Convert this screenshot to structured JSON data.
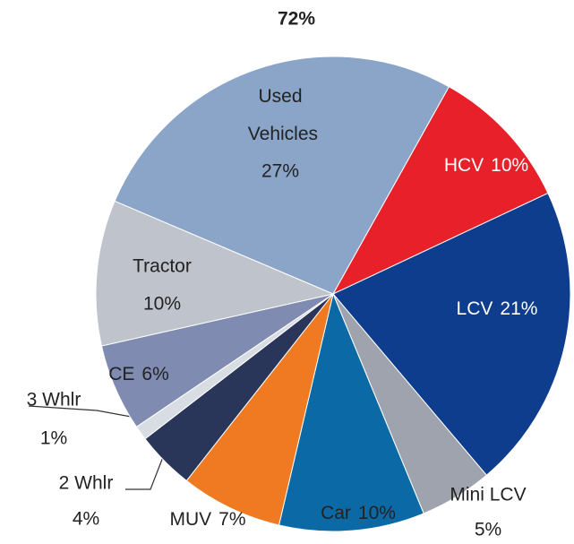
{
  "chart_data": {
    "type": "pie",
    "annotation": "72%",
    "categories": [
      "Used Vehicles",
      "HCV",
      "LCV",
      "Mini LCV",
      "Car",
      "MUV",
      "2 Whlr",
      "3 Whlr",
      "CE",
      "Tractor"
    ],
    "values": [
      27,
      10,
      21,
      5,
      10,
      7,
      4,
      1,
      6,
      10
    ],
    "value_labels": [
      "27%",
      "10%",
      "21%",
      "5%",
      "10%",
      "7%",
      "4%",
      "1%",
      "6%",
      "10%"
    ],
    "colors": [
      "#8aa5c8",
      "#e8202a",
      "#0d3d8c",
      "#9ea3ae",
      "#0b6aa6",
      "#f07a21",
      "#293659",
      "#d8dce3",
      "#7f8bb0",
      "#bfc3cc"
    ]
  }
}
